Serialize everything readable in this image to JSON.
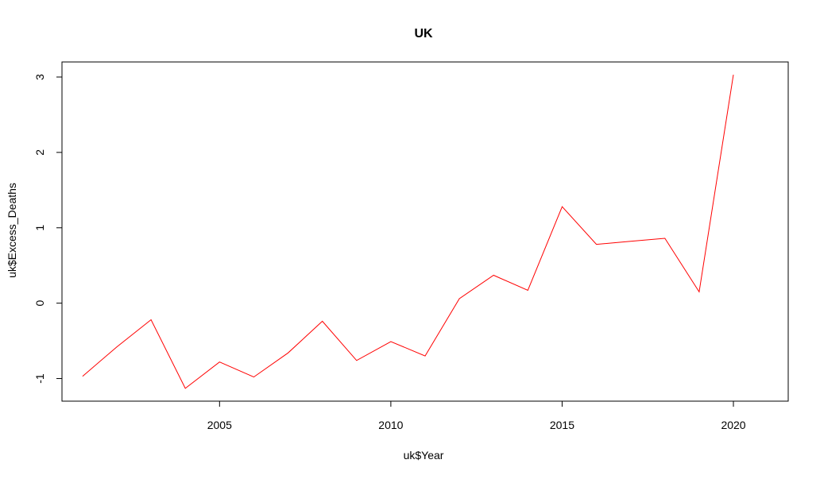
{
  "chart_data": {
    "type": "line",
    "title": "UK",
    "xlabel": "uk$Year",
    "ylabel": "uk$Excess_Deaths",
    "xlim": [
      2000.4,
      2021.6
    ],
    "ylim": [
      -1.3,
      3.2
    ],
    "x_ticks": [
      2005,
      2010,
      2015,
      2020
    ],
    "x_tick_labels": [
      "2005",
      "2010",
      "2015",
      "2020"
    ],
    "y_ticks": [
      -1,
      0,
      1,
      2,
      3
    ],
    "y_tick_labels": [
      "-1",
      "0",
      "1",
      "2",
      "3"
    ],
    "grid": false,
    "series": [
      {
        "color": "#ff0000",
        "x": [
          2001,
          2002,
          2003,
          2004,
          2005,
          2006,
          2007,
          2008,
          2009,
          2010,
          2011,
          2012,
          2013,
          2014,
          2015,
          2016,
          2017,
          2018,
          2019,
          2020
        ],
        "values": [
          -0.97,
          -0.58,
          -0.22,
          -1.13,
          -0.78,
          -0.98,
          -0.66,
          -0.24,
          -0.76,
          -0.51,
          -0.7,
          0.06,
          0.37,
          0.17,
          1.28,
          0.78,
          0.82,
          0.86,
          0.15,
          3.03
        ]
      }
    ]
  }
}
